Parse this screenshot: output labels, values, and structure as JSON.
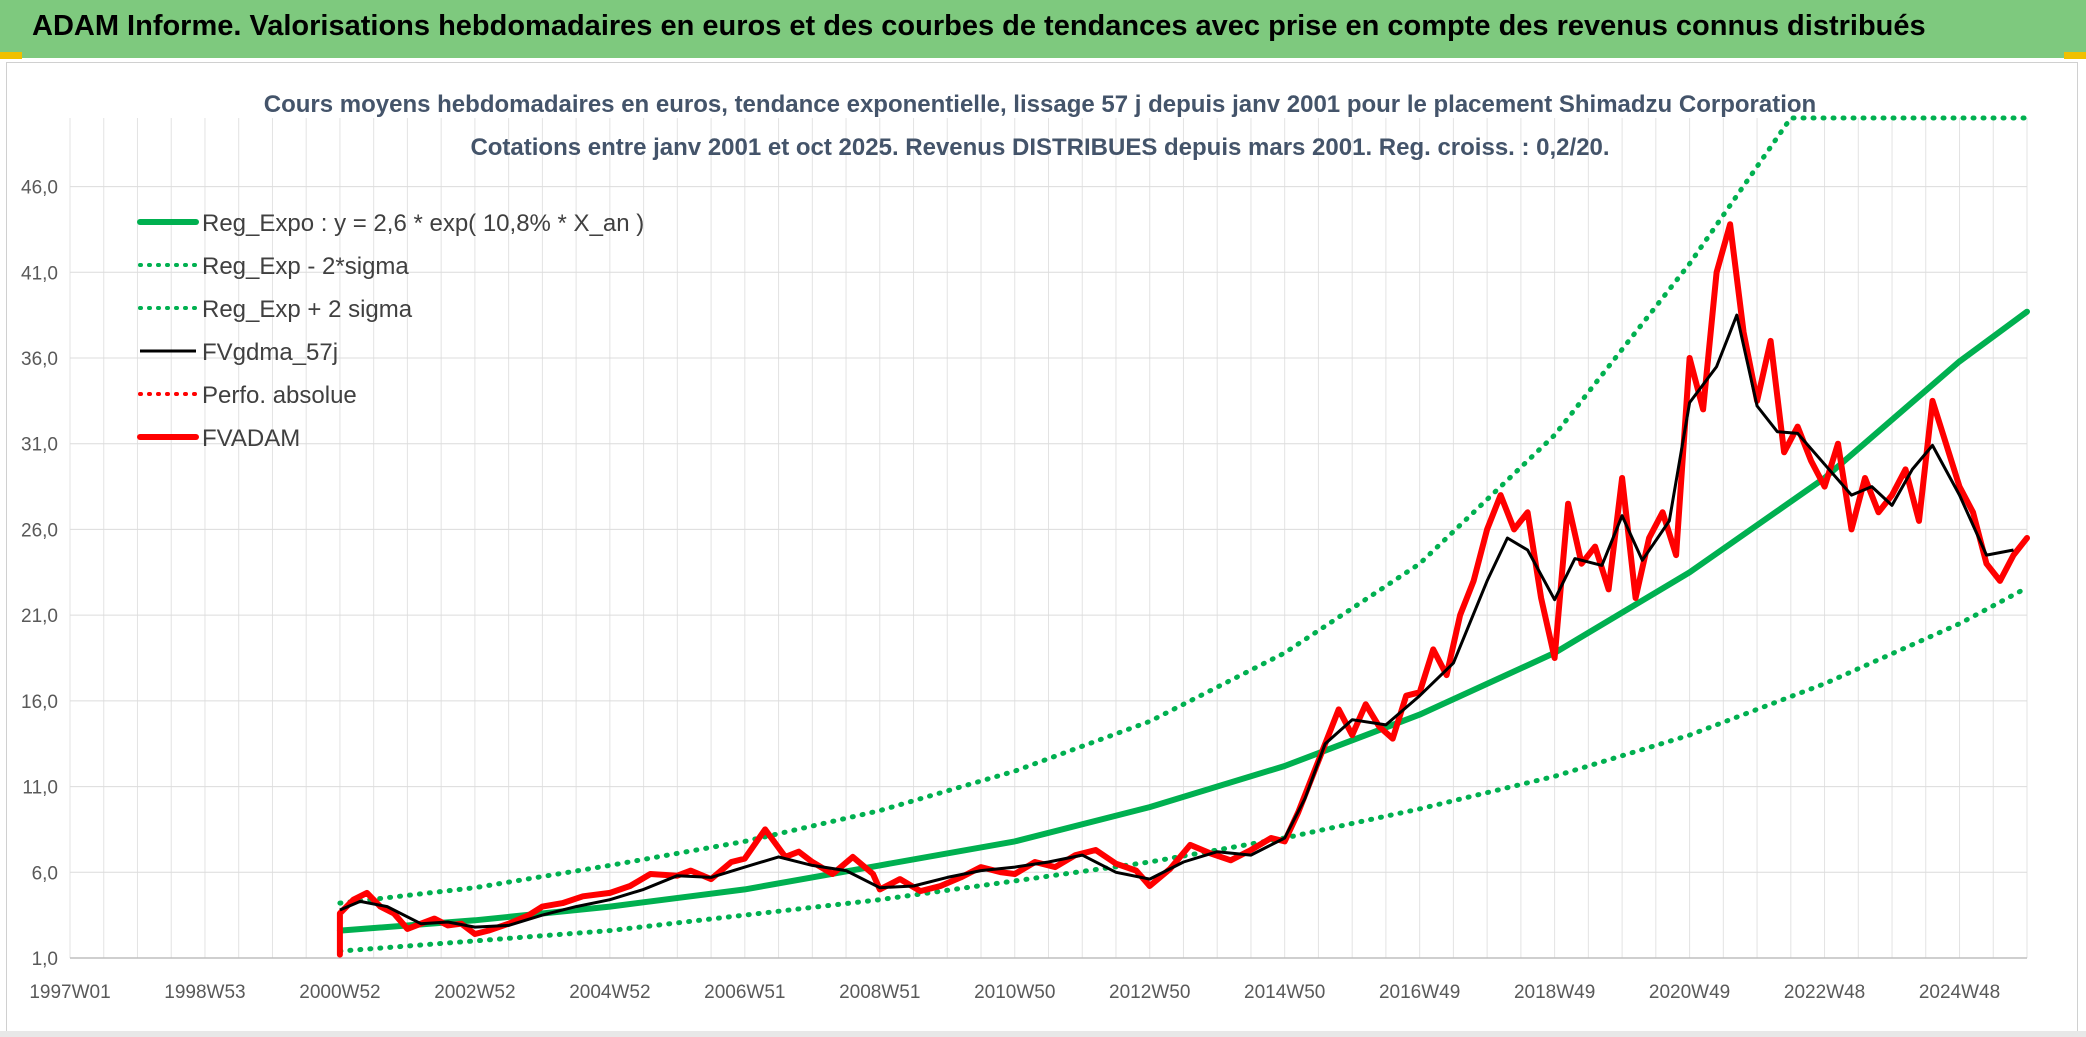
{
  "banner": {
    "title": "ADAM Informe. Valorisations hebdomadaires en euros et des courbes de tendances avec prise en compte des revenus connus distribués",
    "color": "#7ec97e"
  },
  "chart_data": {
    "type": "line",
    "title": "Cours moyens hebdomadaires en euros, tendance exponentielle, lissage 57 j depuis janv 2001 pour le placement Shimadzu Corporation",
    "subtitle": "Cotations entre janv 2001 et oct 2025. Revenus DISTRIBUES depuis mars 2001. Reg. croiss. : 0,2/20.",
    "xlabel": "",
    "ylabel": "",
    "xlim": [
      1997.0,
      2026.0
    ],
    "ylim": [
      1.0,
      50.0
    ],
    "grid": true,
    "legend_position": "top-left",
    "x_ticks": [
      {
        "x": 1997.0,
        "label": "1997W01"
      },
      {
        "x": 1999.0,
        "label": "1998W53"
      },
      {
        "x": 2001.0,
        "label": "2000W52"
      },
      {
        "x": 2003.0,
        "label": "2002W52"
      },
      {
        "x": 2005.0,
        "label": "2004W52"
      },
      {
        "x": 2007.0,
        "label": "2006W51"
      },
      {
        "x": 2009.0,
        "label": "2008W51"
      },
      {
        "x": 2011.0,
        "label": "2010W50"
      },
      {
        "x": 2013.0,
        "label": "2012W50"
      },
      {
        "x": 2015.0,
        "label": "2014W50"
      },
      {
        "x": 2017.0,
        "label": "2016W49"
      },
      {
        "x": 2019.0,
        "label": "2018W49"
      },
      {
        "x": 2021.0,
        "label": "2020W49"
      },
      {
        "x": 2023.0,
        "label": "2022W48"
      },
      {
        "x": 2025.0,
        "label": "2024W48"
      }
    ],
    "y_ticks": [
      {
        "y": 1.0,
        "label": "1,0"
      },
      {
        "y": 6.0,
        "label": "6,0"
      },
      {
        "y": 11.0,
        "label": "11,0"
      },
      {
        "y": 16.0,
        "label": "16,0"
      },
      {
        "y": 21.0,
        "label": "21,0"
      },
      {
        "y": 26.0,
        "label": "26,0"
      },
      {
        "y": 31.0,
        "label": "31,0"
      },
      {
        "y": 36.0,
        "label": "36,0"
      },
      {
        "y": 41.0,
        "label": "41,0"
      },
      {
        "y": 46.0,
        "label": "46,0"
      }
    ],
    "series": [
      {
        "name": "Reg_Expo : y = 2,6 * exp( 10,8% *  X_an )",
        "style": "solid-thick",
        "color": "#00b050",
        "x": [
          2001.0,
          2003.0,
          2005.0,
          2007.0,
          2009.0,
          2011.0,
          2013.0,
          2015.0,
          2017.0,
          2019.0,
          2021.0,
          2023.0,
          2025.0,
          2026.0
        ],
        "y": [
          2.6,
          3.2,
          4.0,
          5.0,
          6.4,
          7.8,
          9.8,
          12.2,
          15.2,
          18.8,
          23.5,
          29.0,
          35.8,
          38.7
        ]
      },
      {
        "name": "Reg_Exp - 2*sigma",
        "style": "dotted",
        "color": "#00b050",
        "x": [
          2001.0,
          2003.0,
          2005.0,
          2007.0,
          2009.0,
          2011.0,
          2013.0,
          2015.0,
          2017.0,
          2019.0,
          2021.0,
          2023.0,
          2025.0,
          2026.0
        ],
        "y": [
          1.4,
          2.0,
          2.6,
          3.5,
          4.4,
          5.5,
          6.6,
          8.0,
          9.7,
          11.6,
          14.0,
          17.0,
          20.5,
          22.6
        ]
      },
      {
        "name": "Reg_Exp + 2 sigma",
        "style": "dotted",
        "color": "#00b050",
        "x": [
          2001.0,
          2003.0,
          2005.0,
          2007.0,
          2009.0,
          2011.0,
          2013.0,
          2015.0,
          2017.0,
          2019.0,
          2021.0,
          2022.5,
          2026.0
        ],
        "y": [
          4.2,
          5.1,
          6.4,
          7.8,
          9.6,
          11.9,
          14.8,
          18.8,
          24.0,
          31.5,
          41.5,
          50.0,
          50.0
        ]
      },
      {
        "name": "FVgdma_57j",
        "style": "solid",
        "color": "#000000",
        "x": [
          2001.0,
          2001.3,
          2001.7,
          2002.2,
          2002.6,
          2003.0,
          2003.5,
          2004.0,
          2004.5,
          2005.0,
          2005.5,
          2006.0,
          2006.5,
          2007.0,
          2007.5,
          2008.0,
          2008.5,
          2009.0,
          2009.5,
          2010.0,
          2010.5,
          2011.0,
          2011.5,
          2012.0,
          2012.5,
          2013.0,
          2013.5,
          2014.0,
          2014.5,
          2015.0,
          2015.3,
          2015.6,
          2016.0,
          2016.5,
          2017.0,
          2017.5,
          2018.0,
          2018.3,
          2018.6,
          2019.0,
          2019.3,
          2019.7,
          2020.0,
          2020.3,
          2020.7,
          2021.0,
          2021.4,
          2021.7,
          2022.0,
          2022.3,
          2022.6,
          2023.0,
          2023.4,
          2023.7,
          2024.0,
          2024.3,
          2024.6,
          2025.0,
          2025.4,
          2025.8
        ],
        "y": [
          3.8,
          4.3,
          4.0,
          3.0,
          3.1,
          2.8,
          2.9,
          3.5,
          4.0,
          4.4,
          5.0,
          5.8,
          5.7,
          6.3,
          6.9,
          6.4,
          6.1,
          5.1,
          5.2,
          5.7,
          6.1,
          6.3,
          6.6,
          7.0,
          6.0,
          5.6,
          6.6,
          7.2,
          7.0,
          8.0,
          10.3,
          13.5,
          14.9,
          14.6,
          16.3,
          18.2,
          23.0,
          25.5,
          24.8,
          21.9,
          24.3,
          23.9,
          26.8,
          24.2,
          26.5,
          33.4,
          35.5,
          38.5,
          33.2,
          31.7,
          31.6,
          29.8,
          28.0,
          28.5,
          27.4,
          29.5,
          30.9,
          28.0,
          24.5,
          24.8
        ]
      },
      {
        "name": "Perfo. absolue",
        "style": "dotted",
        "color": "#ff0000",
        "x": [],
        "y": []
      },
      {
        "name": "FVADAM",
        "style": "solid-thick",
        "color": "#ff0000",
        "x": [
          2001.0,
          2001.0,
          2001.2,
          2001.4,
          2001.6,
          2001.8,
          2002.0,
          2002.2,
          2002.4,
          2002.6,
          2002.8,
          2003.0,
          2003.2,
          2003.5,
          2003.8,
          2004.0,
          2004.3,
          2004.6,
          2005.0,
          2005.3,
          2005.6,
          2006.0,
          2006.2,
          2006.5,
          2006.8,
          2007.0,
          2007.3,
          2007.6,
          2007.8,
          2008.0,
          2008.3,
          2008.6,
          2008.9,
          2009.0,
          2009.3,
          2009.6,
          2009.9,
          2010.2,
          2010.5,
          2010.8,
          2011.0,
          2011.3,
          2011.6,
          2011.9,
          2012.2,
          2012.5,
          2012.8,
          2013.0,
          2013.3,
          2013.6,
          2013.9,
          2014.2,
          2014.5,
          2014.8,
          2015.0,
          2015.2,
          2015.4,
          2015.6,
          2015.8,
          2016.0,
          2016.2,
          2016.4,
          2016.6,
          2016.8,
          2017.0,
          2017.2,
          2017.4,
          2017.6,
          2017.8,
          2018.0,
          2018.2,
          2018.4,
          2018.6,
          2018.8,
          2019.0,
          2019.2,
          2019.4,
          2019.6,
          2019.8,
          2020.0,
          2020.2,
          2020.4,
          2020.6,
          2020.8,
          2021.0,
          2021.2,
          2021.4,
          2021.6,
          2021.8,
          2022.0,
          2022.2,
          2022.4,
          2022.6,
          2022.8,
          2023.0,
          2023.2,
          2023.4,
          2023.6,
          2023.8,
          2024.0,
          2024.2,
          2024.4,
          2024.6,
          2024.8,
          2025.0,
          2025.2,
          2025.4,
          2025.6,
          2025.8,
          2026.0
        ],
        "y": [
          1.2,
          3.6,
          4.4,
          4.8,
          4.0,
          3.6,
          2.7,
          3.0,
          3.3,
          2.9,
          3.0,
          2.4,
          2.6,
          3.0,
          3.5,
          4.0,
          4.2,
          4.6,
          4.8,
          5.2,
          5.9,
          5.8,
          6.1,
          5.6,
          6.6,
          6.8,
          8.5,
          6.9,
          7.2,
          6.6,
          5.9,
          6.9,
          5.9,
          5.0,
          5.6,
          4.9,
          5.2,
          5.7,
          6.3,
          6.0,
          5.9,
          6.6,
          6.3,
          7.0,
          7.3,
          6.5,
          6.1,
          5.2,
          6.2,
          7.6,
          7.1,
          6.7,
          7.3,
          8.0,
          7.8,
          9.5,
          11.5,
          13.5,
          15.5,
          14.0,
          15.8,
          14.5,
          13.8,
          16.3,
          16.5,
          19.0,
          17.5,
          21.0,
          23.0,
          26.0,
          28.0,
          26.0,
          27.0,
          22.0,
          18.5,
          27.5,
          24.0,
          25.0,
          22.5,
          29.0,
          22.0,
          25.5,
          27.0,
          24.5,
          36.0,
          33.0,
          41.0,
          43.8,
          37.5,
          33.5,
          37.0,
          30.5,
          32.0,
          30.0,
          28.5,
          31.0,
          26.0,
          29.0,
          27.0,
          28.0,
          29.5,
          26.5,
          33.5,
          31.0,
          28.5,
          27.0,
          24.0,
          23.0,
          24.5,
          25.5
        ]
      }
    ]
  }
}
